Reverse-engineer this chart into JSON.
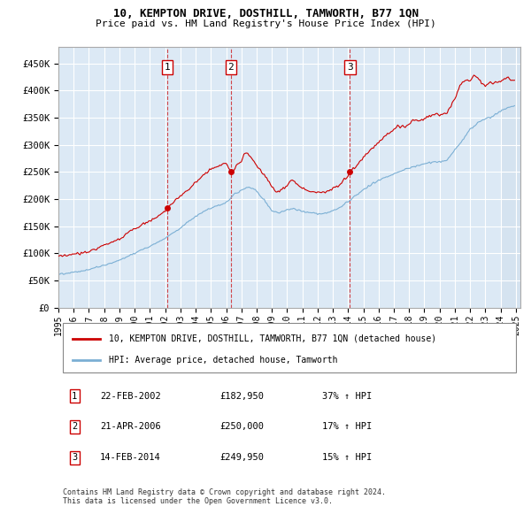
{
  "title": "10, KEMPTON DRIVE, DOSTHILL, TAMWORTH, B77 1QN",
  "subtitle": "Price paid vs. HM Land Registry's House Price Index (HPI)",
  "yticks": [
    0,
    50000,
    100000,
    150000,
    200000,
    250000,
    300000,
    350000,
    400000,
    450000
  ],
  "ytick_labels": [
    "£0",
    "£50K",
    "£100K",
    "£150K",
    "£200K",
    "£250K",
    "£300K",
    "£350K",
    "£400K",
    "£450K"
  ],
  "xlim": [
    1995.0,
    2025.3
  ],
  "ylim": [
    0,
    480000
  ],
  "hpi_color": "#7bafd4",
  "price_color": "#cc0000",
  "plot_bg_color": "#dce9f5",
  "grid_color": "#ffffff",
  "legend_label_price": "10, KEMPTON DRIVE, DOSTHILL, TAMWORTH, B77 1QN (detached house)",
  "legend_label_hpi": "HPI: Average price, detached house, Tamworth",
  "sale_dates": [
    2002.12,
    2006.3,
    2014.12
  ],
  "sale_prices": [
    182950,
    250000,
    249950
  ],
  "sale_labels": [
    "1",
    "2",
    "3"
  ],
  "table_data": [
    [
      "1",
      "22-FEB-2002",
      "£182,950",
      "37% ↑ HPI"
    ],
    [
      "2",
      "21-APR-2006",
      "£250,000",
      "17% ↑ HPI"
    ],
    [
      "3",
      "14-FEB-2014",
      "£249,950",
      "15% ↑ HPI"
    ]
  ],
  "footnote": "Contains HM Land Registry data © Crown copyright and database right 2024.\nThis data is licensed under the Open Government Licence v3.0.",
  "hatch_start": 2024.0,
  "hatch_end": 2025.3
}
